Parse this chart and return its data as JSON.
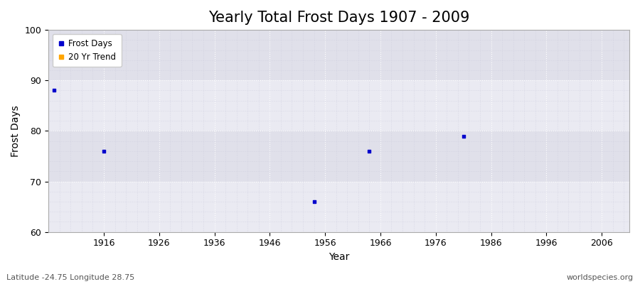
{
  "title": "Yearly Total Frost Days 1907 - 2009",
  "xlabel": "Year",
  "ylabel": "Frost Days",
  "xlim": [
    1906,
    2011
  ],
  "ylim": [
    60,
    100
  ],
  "yticks": [
    60,
    70,
    80,
    90,
    100
  ],
  "xticks": [
    1916,
    1926,
    1936,
    1946,
    1956,
    1966,
    1976,
    1986,
    1996,
    2006
  ],
  "frost_days_x": [
    1907,
    1916,
    1954,
    1964,
    1981
  ],
  "frost_days_y": [
    88,
    76,
    66,
    76,
    79
  ],
  "point_color": "#0000cc",
  "point_marker": "s",
  "point_size": 8,
  "trend_color": "#ffa500",
  "fig_bg_color": "#ffffff",
  "plot_bg_color": "#f0f0f8",
  "band_color_light": "#eaeaf2",
  "band_color_dark": "#e0e0ea",
  "grid_color": "#ccccdd",
  "legend_labels": [
    "Frost Days",
    "20 Yr Trend"
  ],
  "legend_colors": [
    "#0000cc",
    "#ffa500"
  ],
  "footer_left": "Latitude -24.75 Longitude 28.75",
  "footer_right": "worldspecies.org",
  "title_fontsize": 15,
  "label_fontsize": 10,
  "tick_fontsize": 9,
  "footer_fontsize": 8
}
